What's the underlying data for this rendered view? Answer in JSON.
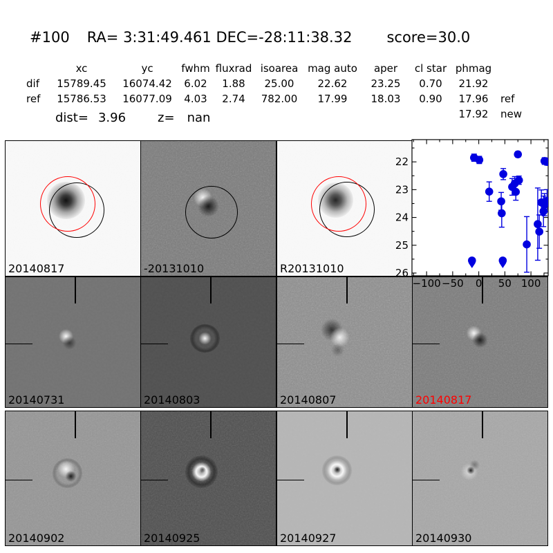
{
  "header": {
    "id": "#100",
    "ra_dec": "RA= 3:31:49.461 DEC=-28:11:38.32",
    "score": "score=30.0"
  },
  "table": {
    "columns": [
      "xc",
      "yc",
      "fwhm",
      "fluxrad",
      "isoarea",
      "mag auto",
      "aper",
      "cl star",
      "phmag"
    ],
    "rows": [
      {
        "label": "dif",
        "values": [
          "15789.45",
          "16074.42",
          "6.02",
          "1.88",
          "25.00",
          "22.62",
          "23.25",
          "0.70",
          "21.92"
        ],
        "suffix": ""
      },
      {
        "label": "ref",
        "values": [
          "15786.53",
          "16077.09",
          "4.03",
          "2.74",
          "782.00",
          "17.99",
          "18.03",
          "0.90",
          "17.96"
        ],
        "suffix": "ref"
      }
    ],
    "extra_phmag": {
      "value": "17.92",
      "suffix": "new"
    },
    "dist_label": "dist=",
    "dist_value": "3.96",
    "z_label": "z=",
    "z_value": "nan"
  },
  "panels": [
    {
      "label": "20140817",
      "label_color": "#000000",
      "bg": "#f9f9f9",
      "kind": "new-stamp"
    },
    {
      "label": "-20131010",
      "label_color": "#000000",
      "bg": "#7b7b7b",
      "kind": "subtraction-stamp"
    },
    {
      "label": "R20131010",
      "label_color": "#000000",
      "bg": "#f9f9f9",
      "kind": "reference-stamp"
    },
    {
      "label": "",
      "label_color": "#000000",
      "bg": "#ffffff",
      "kind": "lightcurve"
    },
    {
      "label": "20140731",
      "label_color": "#000000",
      "bg": "#707070",
      "kind": "diff-stamp"
    },
    {
      "label": "20140803",
      "label_color": "#000000",
      "bg": "#4c4c4c",
      "kind": "diff-stamp"
    },
    {
      "label": "20140807",
      "label_color": "#000000",
      "bg": "#8e8e8e",
      "kind": "diff-stamp"
    },
    {
      "label": "20140817",
      "label_color": "#ff0000",
      "bg": "#7c7c7c",
      "kind": "diff-stamp"
    },
    {
      "label": "20140902",
      "label_color": "#000000",
      "bg": "#969696",
      "kind": "diff-stamp"
    },
    {
      "label": "20140925",
      "label_color": "#000000",
      "bg": "#4f4f4f",
      "kind": "diff-stamp"
    },
    {
      "label": "20140927",
      "label_color": "#000000",
      "bg": "#b6b6b6",
      "kind": "diff-stamp"
    },
    {
      "label": "20140930",
      "label_color": "#000000",
      "bg": "#a8a8a8",
      "kind": "diff-stamp"
    }
  ],
  "annotation_colors": {
    "aperture_red": "#ff0000",
    "aperture_black": "#000000",
    "marker_blue": "#0000e0"
  },
  "chart_data": {
    "type": "scatter",
    "title": "",
    "xlabel": "",
    "ylabel": "",
    "x_tick_values": [
      -100,
      -50,
      0,
      50,
      100
    ],
    "x_tick_labels": [
      "−100",
      "−50",
      "0",
      "50",
      "100"
    ],
    "y_tick_values": [
      22,
      23,
      24,
      25,
      26
    ],
    "y_tick_labels": [
      "22",
      "23",
      "24",
      "25",
      "26"
    ],
    "xlim": [
      -128,
      133
    ],
    "ylim": [
      26.1,
      21.2
    ],
    "y_axis_inverted": true,
    "grid": false,
    "legend": null,
    "marker_color": "#0000e0",
    "points": [
      {
        "x": -9,
        "mag": 21.85,
        "err": 0.13
      },
      {
        "x": 1,
        "mag": 21.93,
        "err": 0.13
      },
      {
        "x": 75,
        "mag": 21.73,
        "err": 0.1
      },
      {
        "x": 126,
        "mag": 21.97,
        "err": 0.12
      },
      {
        "x": 131,
        "mag": 22.0,
        "err": 0.12
      },
      {
        "x": 47,
        "mag": 22.44,
        "err": 0.2
      },
      {
        "x": 77,
        "mag": 22.66,
        "err": 0.15
      },
      {
        "x": 69,
        "mag": 22.78,
        "err": 0.25
      },
      {
        "x": 64,
        "mag": 22.9,
        "err": 0.3
      },
      {
        "x": 71,
        "mag": 23.08,
        "err": 0.3
      },
      {
        "x": 20,
        "mag": 23.07,
        "err": 0.35
      },
      {
        "x": 43,
        "mag": 23.42,
        "err": 0.32
      },
      {
        "x": 44,
        "mag": 23.85,
        "err": 0.5
      },
      {
        "x": 92,
        "mag": 24.97,
        "err": 1.0
      },
      {
        "x": 113,
        "mag": 24.24,
        "err": 1.3
      },
      {
        "x": 116,
        "mag": 24.51,
        "err": 0.6
      },
      {
        "x": 120,
        "mag": 23.46,
        "err": 0.45
      },
      {
        "x": 126,
        "mag": 23.54,
        "err": 0.4
      },
      {
        "x": 124,
        "mag": 23.78,
        "err": 0.55
      },
      {
        "x": 131,
        "mag": 23.4,
        "err": 0.4
      },
      {
        "x": -13,
        "mag": 25.55,
        "err": 0,
        "limit": true
      },
      {
        "x": 46,
        "mag": 25.55,
        "err": 0,
        "limit": true
      }
    ]
  }
}
